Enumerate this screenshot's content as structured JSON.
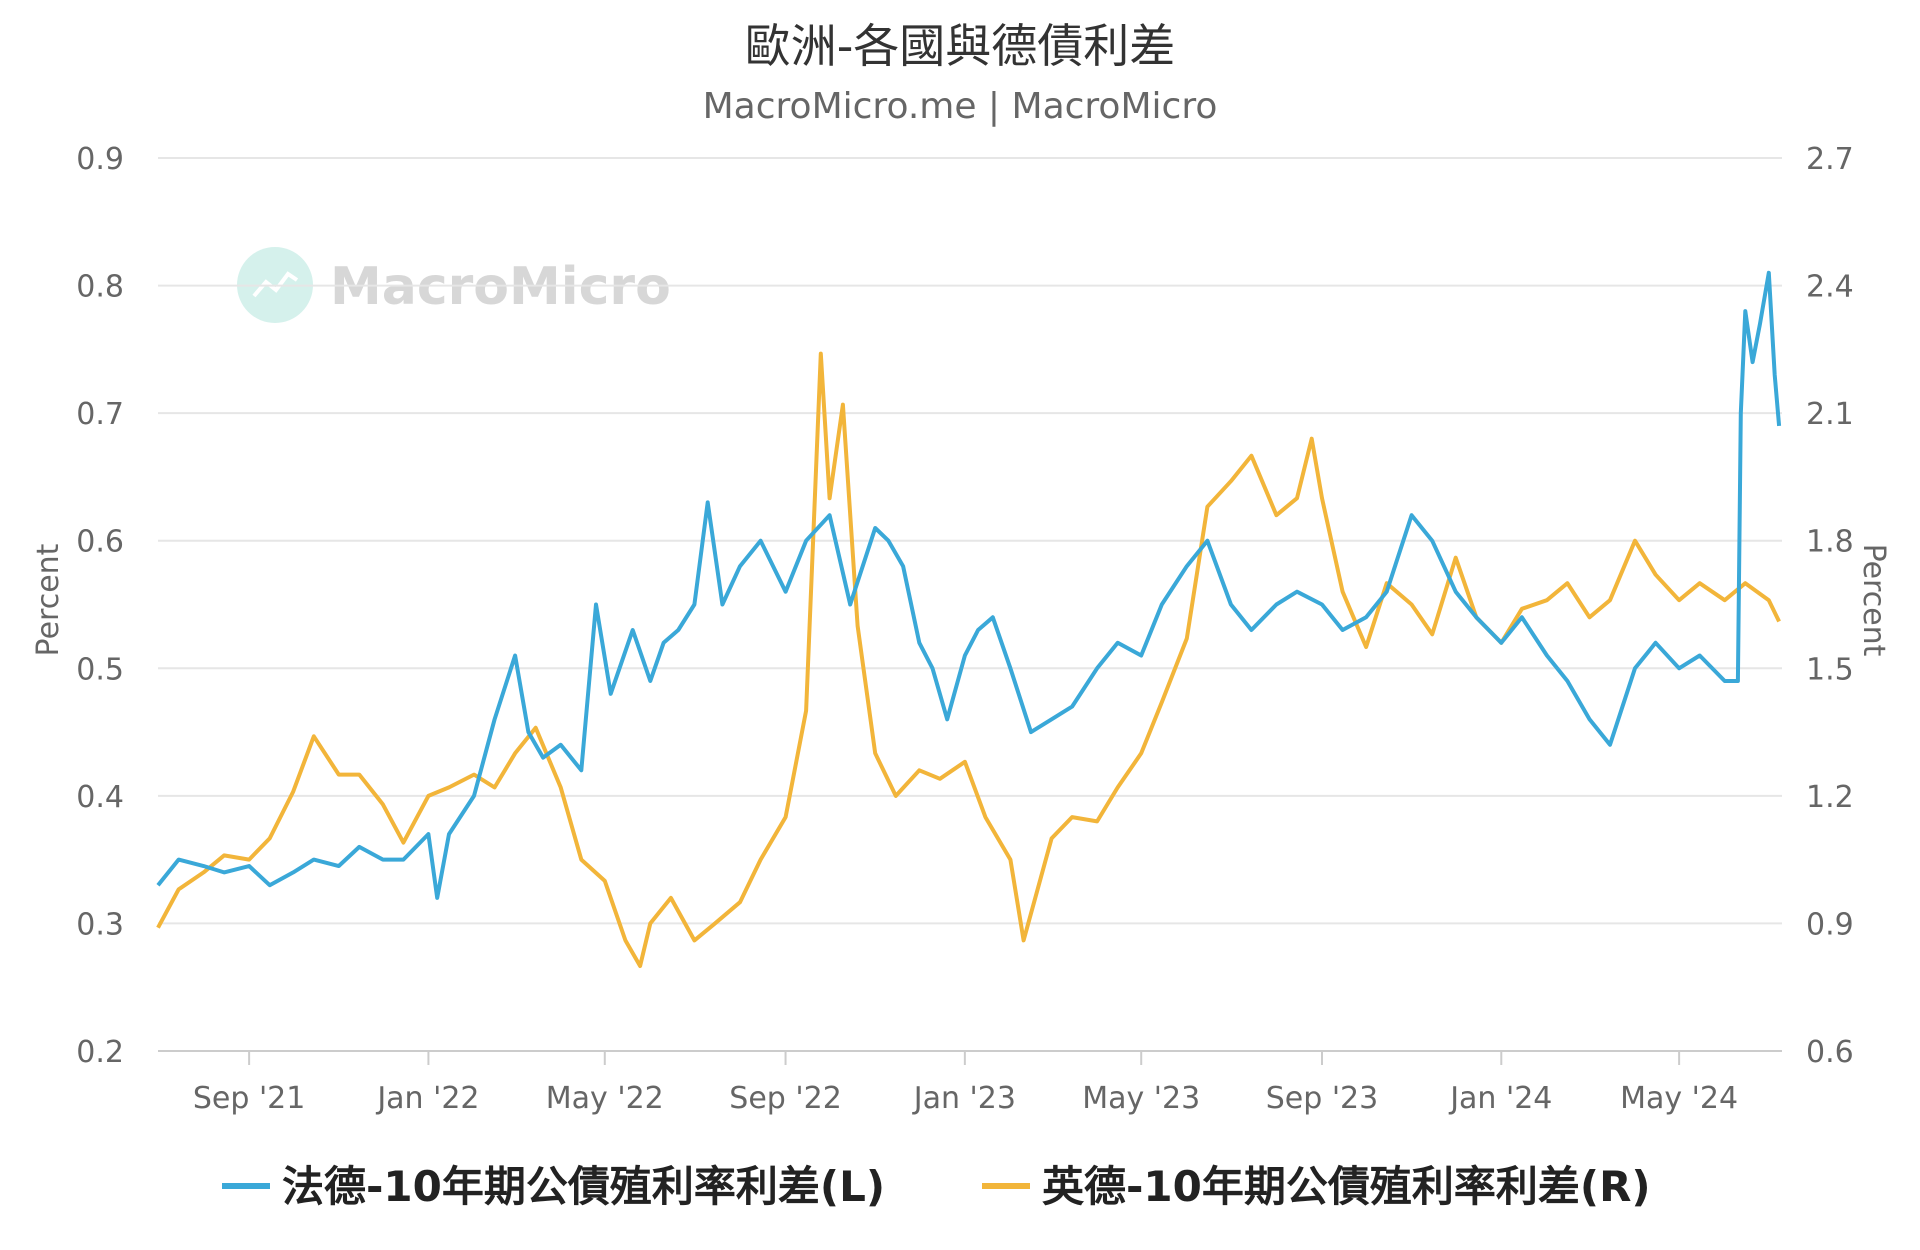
{
  "chart_data": {
    "type": "line",
    "title": "歐洲-各國與德債利差",
    "subtitle": "MacroMicro.me | MacroMicro",
    "watermark": "MacroMicro",
    "colors": {
      "left_series": "#3aa8d8",
      "right_series": "#f2b53a",
      "grid": "#e6e6e6"
    },
    "x_tick_labels": [
      "Sep '21",
      "Jan '22",
      "May '22",
      "Sep '22",
      "Jan '23",
      "May '23",
      "Sep '23",
      "Jan '24",
      "May '24"
    ],
    "y_left": {
      "label": "Percent",
      "lim": [
        0.2,
        0.9
      ],
      "ticks": [
        "0.2",
        "0.3",
        "0.4",
        "0.5",
        "0.6",
        "0.7",
        "0.8",
        "0.9"
      ]
    },
    "y_right": {
      "label": "Percent",
      "lim": [
        0.6,
        2.7
      ],
      "ticks": [
        "0.6",
        "0.9",
        "1.2",
        "1.5",
        "1.8",
        "2.1",
        "2.4",
        "2.7"
      ]
    },
    "legend_position": "bottom",
    "series": [
      {
        "name": "法德-10年期公債殖利率利差(L)",
        "axis": "left",
        "points": [
          [
            "2021-07-01",
            0.33
          ],
          [
            "2021-07-15",
            0.35
          ],
          [
            "2021-08-01",
            0.345
          ],
          [
            "2021-08-15",
            0.34
          ],
          [
            "2021-09-01",
            0.345
          ],
          [
            "2021-09-15",
            0.33
          ],
          [
            "2021-10-01",
            0.34
          ],
          [
            "2021-10-15",
            0.35
          ],
          [
            "2021-11-01",
            0.345
          ],
          [
            "2021-11-15",
            0.36
          ],
          [
            "2021-12-01",
            0.35
          ],
          [
            "2021-12-15",
            0.35
          ],
          [
            "2022-01-01",
            0.37
          ],
          [
            "2022-01-07",
            0.32
          ],
          [
            "2022-01-15",
            0.37
          ],
          [
            "2022-02-01",
            0.4
          ],
          [
            "2022-02-15",
            0.46
          ],
          [
            "2022-03-01",
            0.51
          ],
          [
            "2022-03-10",
            0.45
          ],
          [
            "2022-03-20",
            0.43
          ],
          [
            "2022-04-01",
            0.44
          ],
          [
            "2022-04-15",
            0.42
          ],
          [
            "2022-04-25",
            0.55
          ],
          [
            "2022-05-05",
            0.48
          ],
          [
            "2022-05-20",
            0.53
          ],
          [
            "2022-06-01",
            0.49
          ],
          [
            "2022-06-10",
            0.52
          ],
          [
            "2022-06-20",
            0.53
          ],
          [
            "2022-07-01",
            0.55
          ],
          [
            "2022-07-10",
            0.63
          ],
          [
            "2022-07-20",
            0.55
          ],
          [
            "2022-08-01",
            0.58
          ],
          [
            "2022-08-15",
            0.6
          ],
          [
            "2022-09-01",
            0.56
          ],
          [
            "2022-09-15",
            0.6
          ],
          [
            "2022-10-01",
            0.62
          ],
          [
            "2022-10-15",
            0.55
          ],
          [
            "2022-11-01",
            0.61
          ],
          [
            "2022-11-10",
            0.6
          ],
          [
            "2022-11-20",
            0.58
          ],
          [
            "2022-12-01",
            0.52
          ],
          [
            "2022-12-10",
            0.5
          ],
          [
            "2022-12-20",
            0.46
          ],
          [
            "2023-01-01",
            0.51
          ],
          [
            "2023-01-10",
            0.53
          ],
          [
            "2023-01-20",
            0.54
          ],
          [
            "2023-02-01",
            0.5
          ],
          [
            "2023-02-15",
            0.45
          ],
          [
            "2023-03-01",
            0.46
          ],
          [
            "2023-03-15",
            0.47
          ],
          [
            "2023-04-01",
            0.5
          ],
          [
            "2023-04-15",
            0.52
          ],
          [
            "2023-05-01",
            0.51
          ],
          [
            "2023-05-15",
            0.55
          ],
          [
            "2023-06-01",
            0.58
          ],
          [
            "2023-06-15",
            0.6
          ],
          [
            "2023-07-01",
            0.55
          ],
          [
            "2023-07-15",
            0.53
          ],
          [
            "2023-08-01",
            0.55
          ],
          [
            "2023-08-15",
            0.56
          ],
          [
            "2023-09-01",
            0.55
          ],
          [
            "2023-09-15",
            0.53
          ],
          [
            "2023-10-01",
            0.54
          ],
          [
            "2023-10-15",
            0.56
          ],
          [
            "2023-11-01",
            0.62
          ],
          [
            "2023-11-15",
            0.6
          ],
          [
            "2023-12-01",
            0.56
          ],
          [
            "2023-12-15",
            0.54
          ],
          [
            "2024-01-01",
            0.52
          ],
          [
            "2024-01-15",
            0.54
          ],
          [
            "2024-02-01",
            0.51
          ],
          [
            "2024-02-15",
            0.49
          ],
          [
            "2024-03-01",
            0.46
          ],
          [
            "2024-03-15",
            0.44
          ],
          [
            "2024-04-01",
            0.5
          ],
          [
            "2024-04-15",
            0.52
          ],
          [
            "2024-05-01",
            0.5
          ],
          [
            "2024-05-15",
            0.51
          ],
          [
            "2024-06-01",
            0.49
          ],
          [
            "2024-06-10",
            0.49
          ],
          [
            "2024-06-12",
            0.7
          ],
          [
            "2024-06-15",
            0.78
          ],
          [
            "2024-06-20",
            0.74
          ],
          [
            "2024-06-25",
            0.77
          ],
          [
            "2024-07-01",
            0.81
          ],
          [
            "2024-07-05",
            0.73
          ],
          [
            "2024-07-08",
            0.69
          ]
        ]
      },
      {
        "name": "英德-10年期公債殖利率利差(R)",
        "axis": "right",
        "points": [
          [
            "2021-07-01",
            0.89
          ],
          [
            "2021-07-15",
            0.98
          ],
          [
            "2021-08-01",
            1.02
          ],
          [
            "2021-08-15",
            1.06
          ],
          [
            "2021-09-01",
            1.05
          ],
          [
            "2021-09-15",
            1.1
          ],
          [
            "2021-10-01",
            1.21
          ],
          [
            "2021-10-15",
            1.34
          ],
          [
            "2021-11-01",
            1.25
          ],
          [
            "2021-11-15",
            1.25
          ],
          [
            "2021-12-01",
            1.18
          ],
          [
            "2021-12-15",
            1.09
          ],
          [
            "2022-01-01",
            1.2
          ],
          [
            "2022-01-15",
            1.22
          ],
          [
            "2022-02-01",
            1.25
          ],
          [
            "2022-02-15",
            1.22
          ],
          [
            "2022-03-01",
            1.3
          ],
          [
            "2022-03-15",
            1.36
          ],
          [
            "2022-04-01",
            1.22
          ],
          [
            "2022-04-15",
            1.05
          ],
          [
            "2022-05-01",
            1.0
          ],
          [
            "2022-05-15",
            0.86
          ],
          [
            "2022-05-25",
            0.8
          ],
          [
            "2022-06-01",
            0.9
          ],
          [
            "2022-06-15",
            0.96
          ],
          [
            "2022-07-01",
            0.86
          ],
          [
            "2022-07-15",
            0.9
          ],
          [
            "2022-08-01",
            0.95
          ],
          [
            "2022-08-15",
            1.05
          ],
          [
            "2022-09-01",
            1.15
          ],
          [
            "2022-09-15",
            1.4
          ],
          [
            "2022-09-25",
            2.24
          ],
          [
            "2022-10-01",
            1.9
          ],
          [
            "2022-10-10",
            2.12
          ],
          [
            "2022-10-20",
            1.6
          ],
          [
            "2022-11-01",
            1.3
          ],
          [
            "2022-11-15",
            1.2
          ],
          [
            "2022-12-01",
            1.26
          ],
          [
            "2022-12-15",
            1.24
          ],
          [
            "2023-01-01",
            1.28
          ],
          [
            "2023-01-15",
            1.15
          ],
          [
            "2023-02-01",
            1.05
          ],
          [
            "2023-02-10",
            0.86
          ],
          [
            "2023-03-01",
            1.1
          ],
          [
            "2023-03-15",
            1.15
          ],
          [
            "2023-04-01",
            1.14
          ],
          [
            "2023-04-15",
            1.22
          ],
          [
            "2023-05-01",
            1.3
          ],
          [
            "2023-05-15",
            1.42
          ],
          [
            "2023-06-01",
            1.57
          ],
          [
            "2023-06-15",
            1.88
          ],
          [
            "2023-07-01",
            1.94
          ],
          [
            "2023-07-15",
            2.0
          ],
          [
            "2023-08-01",
            1.86
          ],
          [
            "2023-08-15",
            1.9
          ],
          [
            "2023-08-25",
            2.04
          ],
          [
            "2023-09-01",
            1.9
          ],
          [
            "2023-09-15",
            1.68
          ],
          [
            "2023-10-01",
            1.55
          ],
          [
            "2023-10-15",
            1.7
          ],
          [
            "2023-11-01",
            1.65
          ],
          [
            "2023-11-15",
            1.58
          ],
          [
            "2023-12-01",
            1.76
          ],
          [
            "2023-12-15",
            1.62
          ],
          [
            "2024-01-01",
            1.56
          ],
          [
            "2024-01-15",
            1.64
          ],
          [
            "2024-02-01",
            1.66
          ],
          [
            "2024-02-15",
            1.7
          ],
          [
            "2024-03-01",
            1.62
          ],
          [
            "2024-03-15",
            1.66
          ],
          [
            "2024-04-01",
            1.8
          ],
          [
            "2024-04-15",
            1.72
          ],
          [
            "2024-05-01",
            1.66
          ],
          [
            "2024-05-15",
            1.7
          ],
          [
            "2024-06-01",
            1.66
          ],
          [
            "2024-06-15",
            1.7
          ],
          [
            "2024-07-01",
            1.66
          ],
          [
            "2024-07-08",
            1.61
          ]
        ]
      }
    ]
  }
}
